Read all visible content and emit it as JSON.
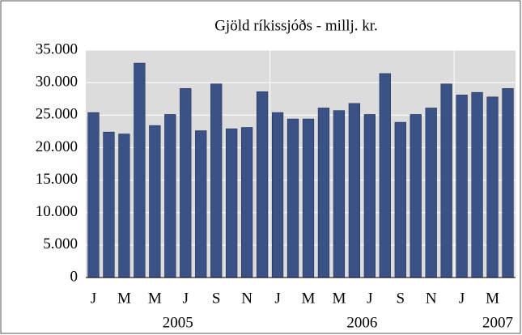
{
  "chart_data": {
    "type": "bar",
    "title": "Gjöld ríkissjóðs - millj. kr.",
    "categories": [
      "J",
      null,
      "M",
      null,
      "M",
      null,
      "J",
      null,
      "S",
      null,
      "N",
      null,
      "J",
      null,
      "M",
      null,
      "M",
      null,
      "J",
      null,
      "S",
      null,
      "N",
      null,
      "J",
      null,
      "M",
      null
    ],
    "x_groups": [
      "2005",
      "2006",
      "2007"
    ],
    "values": [
      25400,
      22400,
      22100,
      33000,
      23400,
      25100,
      29100,
      22600,
      29800,
      22900,
      23100,
      28600,
      25400,
      24400,
      24400,
      26100,
      25700,
      26800,
      25100,
      31400,
      23900,
      25100,
      26100,
      29800,
      28100,
      28500,
      27800,
      29100
    ],
    "color": "#3b5287",
    "ylim": [
      0,
      35000
    ],
    "yticks": [
      0,
      {
        "value": 5000,
        "label": "5.000"
      },
      {
        "value": 10000,
        "label": "10.000"
      },
      {
        "value": 15000,
        "label": "15.000"
      },
      {
        "value": 20000,
        "label": "20.000"
      },
      {
        "value": 25000,
        "label": "25.000"
      },
      {
        "value": 30000,
        "label": "30.000"
      },
      {
        "value": 35000,
        "label": "35.000"
      }
    ],
    "grid": true
  }
}
